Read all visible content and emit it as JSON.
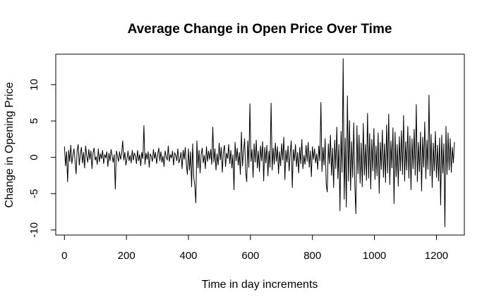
{
  "chart_data": {
    "type": "line",
    "title": "Average Change in Open Price Over Time",
    "xlabel": "Time in day increments",
    "ylabel": "Change in Opening Price",
    "xlim": [
      -28,
      1290
    ],
    "ylim": [
      -10.7,
      14.2
    ],
    "xticks": [
      0,
      200,
      400,
      600,
      800,
      1000,
      1200
    ],
    "yticks": [
      -10,
      -5,
      0,
      5,
      10
    ],
    "grid": false,
    "legend": "none",
    "series": [
      {
        "values": [
          1.5,
          -1.2,
          0.8,
          -3.4,
          1.0,
          -0.6,
          1.7,
          -0.9,
          0.3,
          1.2,
          -0.5,
          -2.3,
          0.9,
          1.8,
          -1.1,
          0.4,
          1.4,
          -0.8,
          0.7,
          -1.5,
          1.6,
          0.2,
          -0.7,
          1.1,
          -0.3,
          0.9,
          -1.6,
          0.6,
          1.3,
          -0.4,
          0.1,
          -1.0,
          1.2,
          -0.6,
          0.5,
          -0.2,
          1.0,
          -0.9,
          0.4,
          -0.1,
          0.8,
          -1.3,
          0.6,
          -0.5,
          1.1,
          0.2,
          -0.7,
          0.4,
          -4.4,
          0.9,
          0.2,
          -0.6,
          0.8,
          -0.3,
          0.5,
          2.3,
          -0.4,
          0.7,
          -1.1,
          -0.2,
          0.9,
          -0.5,
          0.3,
          -0.8,
          1.0,
          -0.4,
          0.6,
          0.2,
          -0.9,
          1.0,
          -0.5,
          0.4,
          -1.2,
          0.7,
          -0.2,
          4.4,
          -1.0,
          0.6,
          -0.3,
          0.8,
          -1.4,
          0.5,
          0.1,
          -0.6,
          1.1,
          -0.2,
          0.7,
          -0.9,
          0.3,
          1.3,
          -0.5,
          0.8,
          -0.7,
          0.2,
          -1.3,
          0.9,
          0.1,
          -0.4,
          1.6,
          -0.6,
          0.4,
          -0.1,
          0.9,
          -1.1,
          0.6,
          0.3,
          -0.5,
          1.2,
          -0.8,
          -0.2,
          0.7,
          -1.6,
          1.0,
          -0.3,
          1.4,
          -0.9,
          -2.4,
          1.2,
          -1.8,
          0.8,
          -4.1,
          1.9,
          -2.7,
          -3.9,
          -6.3,
          2.3,
          -1.5,
          1.0,
          -2.2,
          0.4,
          1.3,
          -0.8,
          0.3,
          -1.6,
          1.5,
          -0.6,
          0.9,
          -0.3,
          1.1,
          -1.0,
          4.2,
          -0.7,
          1.2,
          -1.8,
          0.5,
          -1.1,
          2.0,
          -0.4,
          1.4,
          -2.1,
          0.8,
          1.7,
          -1.3,
          0.6,
          -0.2,
          1.8,
          -0.9,
          1.0,
          -1.5,
          0.4,
          -4.5,
          2.1,
          -0.5,
          1.3,
          -1.1,
          0.7,
          -2.4,
          3.5,
          -1.2,
          0.8,
          2.6,
          -1.9,
          -3.4,
          2.3,
          -1.4,
          7.4,
          -0.6,
          1.1,
          -2.8,
          1.9,
          -0.7,
          2.4,
          -1.5,
          0.9,
          -2.0,
          1.6,
          -0.5,
          2.2,
          -3.3,
          1.4,
          -0.8,
          1.7,
          -2.6,
          0.9,
          -1.4,
          7.5,
          -1.8,
          1.3,
          -1.0,
          2.0,
          -0.6,
          1.5,
          -2.3,
          0.8,
          -1.2,
          1.9,
          -0.4,
          2.8,
          -3.1,
          1.0,
          -0.7,
          1.6,
          -1.9,
          0.6,
          2.3,
          -4.2,
          1.1,
          -0.5,
          1.8,
          -1.3,
          0.7,
          -2.2,
          1.4,
          -0.9,
          2.5,
          -1.6,
          0.3,
          -1.0,
          1.7,
          -0.6,
          2.1,
          -1.4,
          0.9,
          -2.7,
          1.5,
          -0.3,
          1.2,
          -0.8,
          0.5,
          -1.7,
          1.6,
          -0.5,
          7.6,
          -2.0,
          1.4,
          -1.1,
          2.6,
          -3.7,
          -4.8,
          1.9,
          -0.9,
          3.1,
          -2.5,
          1.3,
          -4.2,
          2.4,
          -1.6,
          4.2,
          -3.0,
          1.8,
          -7.4,
          3.6,
          -2.1,
          13.6,
          -5.8,
          2.7,
          -6.9,
          8.5,
          -3.3,
          5.1,
          -4.6,
          2.2,
          -2.8,
          4.8,
          -3.9,
          -7.8,
          4.4,
          -2.3,
          3.1,
          -3.6,
          2.0,
          -4.1,
          4.7,
          -2.5,
          1.8,
          -3.2,
          6.1,
          -2.9,
          3.3,
          -4.4,
          2.5,
          -1.9,
          4.0,
          -3.1,
          1.6,
          -2.6,
          3.4,
          -5.0,
          2.1,
          -1.7,
          3.8,
          -2.8,
          1.9,
          -3.5,
          4.5,
          -2.2,
          6.0,
          -3.8,
          2.3,
          -1.5,
          4.1,
          -6.4,
          3.5,
          -2.7,
          1.8,
          -4.0,
          2.9,
          -1.9,
          3.7,
          -2.4,
          5.8,
          -3.3,
          2.2,
          -1.8,
          4.3,
          -2.9,
          3.0,
          -4.5,
          2.6,
          -1.6,
          3.9,
          -2.5,
          7.3,
          -3.4,
          2.1,
          -2.0,
          3.5,
          -4.7,
          2.8,
          -1.4,
          4.9,
          -3.0,
          2.4,
          -1.7,
          8.6,
          -2.6,
          3.2,
          -4.2,
          2.0,
          -1.9,
          3.6,
          -2.8,
          1.7,
          -3.3,
          2.7,
          -6.6,
          3.1,
          -2.2,
          1.9,
          -9.6,
          4.3,
          -2.4,
          3.4,
          -1.8,
          2.6,
          -2.1,
          1.4,
          -0.8,
          2.1
        ]
      }
    ]
  }
}
